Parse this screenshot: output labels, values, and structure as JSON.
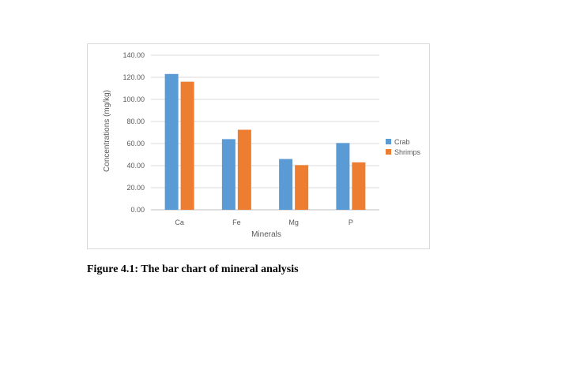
{
  "chart_data": {
    "type": "bar",
    "categories": [
      "Ca",
      "Fe",
      "Mg",
      "P"
    ],
    "series": [
      {
        "name": "Crab",
        "values": [
          123,
          64,
          46,
          60.5
        ],
        "color": "#5b9bd5"
      },
      {
        "name": "Shrimps",
        "values": [
          116,
          72.5,
          40.5,
          43
        ],
        "color": "#ed7d31"
      }
    ],
    "xlabel": "Minerals",
    "ylabel": "Concentrations (mg/kg)",
    "ylim": [
      0,
      140
    ],
    "yticks": [
      "0.00",
      "20.00",
      "40.00",
      "60.00",
      "80.00",
      "100.00",
      "120.00",
      "140.00"
    ],
    "grid": true,
    "legend_position": "right"
  },
  "caption": "Figure 4.1: The bar chart of mineral analysis"
}
